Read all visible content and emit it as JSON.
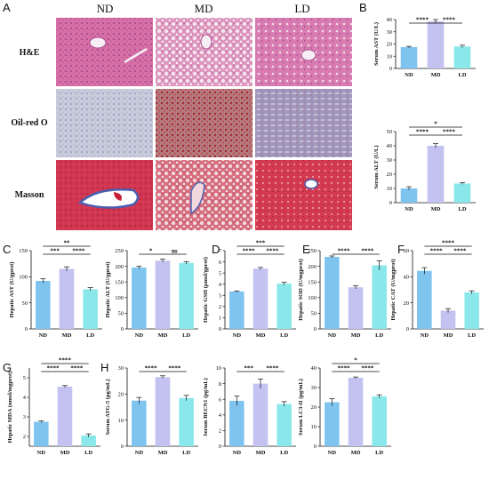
{
  "figure": {
    "panel_letters": {
      "A": "A",
      "B": "B",
      "C": "C",
      "D": "D",
      "E": "E",
      "F": "F",
      "G": "G",
      "H": "H"
    },
    "histology": {
      "columns": [
        "ND",
        "MD",
        "LD"
      ],
      "rows": [
        "H&E",
        "Oil-red O",
        "Masson"
      ],
      "stain_colors": {
        "H&E": [
          "#d66fa5",
          "#e3a8c8",
          "#d982b4"
        ],
        "Oil-red O": [
          "#c5c9d8",
          "#b56a70",
          "#9d8fb6"
        ],
        "Masson": [
          "#d2354d",
          "#d9707e",
          "#d3384c"
        ]
      }
    },
    "bar_colors": [
      "#7ec4ef",
      "#c3c2f0",
      "#8ae8ea"
    ]
  },
  "chart_data": [
    {
      "id": "ast_serum",
      "type": "bar",
      "categories": [
        "ND",
        "MD",
        "LD"
      ],
      "values": [
        17.5,
        38.5,
        18
      ],
      "errors": [
        0.6,
        1.5,
        1.0
      ],
      "ylabel": "Serum AST (U/L)",
      "ylim": [
        0,
        40
      ],
      "yticks": [
        0,
        10,
        20,
        30,
        40
      ],
      "significance": [
        {
          "from": 0,
          "to": 1,
          "label": "****",
          "level": 1
        },
        {
          "from": 1,
          "to": 2,
          "label": "****",
          "level": 1
        }
      ]
    },
    {
      "id": "alt_serum",
      "type": "bar",
      "categories": [
        "ND",
        "MD",
        "LD"
      ],
      "values": [
        10,
        40,
        13.5
      ],
      "errors": [
        1.2,
        1.5,
        0.6
      ],
      "ylabel": "Serum ALT (U/L)",
      "ylim": [
        0,
        50
      ],
      "yticks": [
        0,
        10,
        20,
        30,
        40,
        50
      ],
      "significance": [
        {
          "from": 0,
          "to": 1,
          "label": "****",
          "level": 1
        },
        {
          "from": 1,
          "to": 2,
          "label": "****",
          "level": 1
        },
        {
          "from": 0,
          "to": 2,
          "label": "*",
          "level": 2
        }
      ]
    },
    {
      "id": "ast_hepatic",
      "type": "bar",
      "categories": [
        "ND",
        "MD",
        "LD"
      ],
      "values": [
        92,
        115,
        76
      ],
      "errors": [
        4,
        4,
        3
      ],
      "ylabel": "Hepatic AST (U/gprot)",
      "ylim": [
        0,
        150
      ],
      "yticks": [
        0,
        50,
        100,
        150
      ],
      "significance": [
        {
          "from": 0,
          "to": 1,
          "label": "***",
          "level": 1
        },
        {
          "from": 1,
          "to": 2,
          "label": "****",
          "level": 1
        },
        {
          "from": 0,
          "to": 2,
          "label": "**",
          "level": 2
        }
      ]
    },
    {
      "id": "alt_hepatic",
      "type": "bar",
      "categories": [
        "ND",
        "MD",
        "LD"
      ],
      "values": [
        196,
        218,
        211
      ],
      "errors": [
        4,
        5,
        4
      ],
      "ylabel": "Hepatic ALT (U/gprot)",
      "ylim": [
        0,
        250
      ],
      "yticks": [
        0,
        50,
        100,
        150,
        200,
        250
      ],
      "significance": [
        {
          "from": 0,
          "to": 1,
          "label": "*",
          "level": 1
        },
        {
          "from": 1,
          "to": 2,
          "label": "ns",
          "level": 1
        }
      ]
    },
    {
      "id": "gsh",
      "type": "bar",
      "categories": [
        "ND",
        "MD",
        "LD"
      ],
      "values": [
        3.35,
        5.4,
        4.05
      ],
      "errors": [
        0.05,
        0.1,
        0.12
      ],
      "ylabel": "Hepatic GSH (μmol/gprot)",
      "ylim": [
        0,
        7
      ],
      "yticks": [
        0,
        1,
        2,
        3,
        4,
        5,
        6,
        7
      ],
      "significance": [
        {
          "from": 0,
          "to": 1,
          "label": "****",
          "level": 1
        },
        {
          "from": 1,
          "to": 2,
          "label": "****",
          "level": 1
        },
        {
          "from": 0,
          "to": 2,
          "label": "***",
          "level": 2
        }
      ]
    },
    {
      "id": "sod",
      "type": "bar",
      "categories": [
        "ND",
        "MD",
        "LD"
      ],
      "values": [
        230,
        133,
        203
      ],
      "errors": [
        3,
        5,
        15
      ],
      "ylabel": "Hepatic SOD (U/mgprot)",
      "ylim": [
        0,
        250
      ],
      "yticks": [
        0,
        50,
        100,
        150,
        200,
        250
      ],
      "significance": [
        {
          "from": 0,
          "to": 1,
          "label": "****",
          "level": 1
        },
        {
          "from": 1,
          "to": 2,
          "label": "****",
          "level": 1
        }
      ]
    },
    {
      "id": "cat",
      "type": "bar",
      "categories": [
        "ND",
        "MD",
        "LD"
      ],
      "values": [
        44.5,
        14,
        28
      ],
      "errors": [
        2.5,
        1.5,
        1.2
      ],
      "ylabel": "Hepatic CAT (U/mgprot)",
      "ylim": [
        0,
        60
      ],
      "yticks": [
        0,
        20,
        40,
        60
      ],
      "significance": [
        {
          "from": 0,
          "to": 1,
          "label": "****",
          "level": 1
        },
        {
          "from": 1,
          "to": 2,
          "label": "****",
          "level": 1
        },
        {
          "from": 0,
          "to": 2,
          "label": "****",
          "level": 2
        }
      ]
    },
    {
      "id": "mda",
      "type": "bar",
      "categories": [
        "ND",
        "MD",
        "LD"
      ],
      "values": [
        2.75,
        4.55,
        2.05
      ],
      "errors": [
        0.05,
        0.05,
        0.08
      ],
      "ylabel": "Hepatic MDA (nmol/mgprot)",
      "ylim": [
        1.5,
        5.5
      ],
      "yticks": [
        2,
        3,
        4,
        5
      ],
      "significance": [
        {
          "from": 0,
          "to": 1,
          "label": "****",
          "level": 1
        },
        {
          "from": 1,
          "to": 2,
          "label": "****",
          "level": 1
        },
        {
          "from": 0,
          "to": 2,
          "label": "****",
          "level": 2
        }
      ]
    },
    {
      "id": "atg5",
      "type": "bar",
      "categories": [
        "ND",
        "MD",
        "LD"
      ],
      "values": [
        17.5,
        26.5,
        18.5
      ],
      "errors": [
        1.2,
        0.5,
        1.0
      ],
      "ylabel": "Serum ATG-5 (pg/mL)",
      "ylim": [
        0,
        30
      ],
      "yticks": [
        0,
        10,
        20,
        30
      ],
      "significance": [
        {
          "from": 0,
          "to": 1,
          "label": "****",
          "level": 1
        },
        {
          "from": 1,
          "to": 2,
          "label": "****",
          "level": 1
        }
      ]
    },
    {
      "id": "becn1",
      "type": "bar",
      "categories": [
        "ND",
        "MD",
        "LD"
      ],
      "values": [
        5.8,
        8.0,
        5.4
      ],
      "errors": [
        0.6,
        0.6,
        0.3
      ],
      "ylabel": "Serum BECN1 (pg/mL)",
      "ylim": [
        0,
        10
      ],
      "yticks": [
        0,
        2,
        4,
        6,
        8,
        10
      ],
      "significance": [
        {
          "from": 0,
          "to": 1,
          "label": "***",
          "level": 1
        },
        {
          "from": 1,
          "to": 2,
          "label": "****",
          "level": 1
        }
      ]
    },
    {
      "id": "lc3",
      "type": "bar",
      "categories": [
        "ND",
        "MD",
        "LD"
      ],
      "values": [
        22.5,
        35,
        25.5
      ],
      "errors": [
        1.8,
        0.4,
        0.8
      ],
      "ylabel": "Serum LC3-II (pg/mL)",
      "ylim": [
        0,
        40
      ],
      "yticks": [
        0,
        10,
        20,
        30,
        40
      ],
      "significance": [
        {
          "from": 0,
          "to": 1,
          "label": "****",
          "level": 1
        },
        {
          "from": 1,
          "to": 2,
          "label": "****",
          "level": 1
        },
        {
          "from": 0,
          "to": 2,
          "label": "*",
          "level": 2
        }
      ]
    }
  ]
}
